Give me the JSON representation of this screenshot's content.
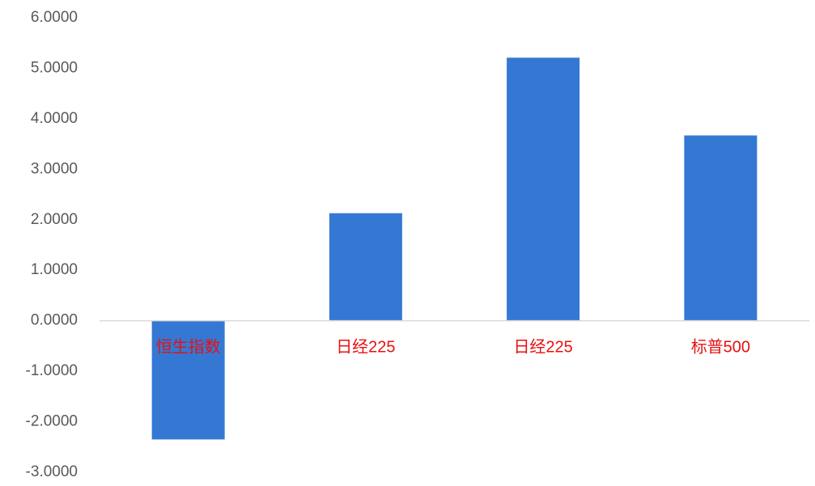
{
  "chart_data": {
    "type": "bar",
    "categories": [
      "恒生指数",
      "日经225",
      "日经225",
      "标普500"
    ],
    "values": [
      -2.35,
      2.13,
      5.21,
      3.67
    ],
    "ylim": [
      -3,
      6
    ],
    "yticks": [
      6,
      5,
      4,
      3,
      2,
      1,
      0,
      -1,
      -2,
      -3
    ],
    "ytick_labels": [
      "6.0000",
      "5.0000",
      "4.0000",
      "3.0000",
      "2.0000",
      "1.0000",
      "0.0000",
      "-1.0000",
      "-2.0000",
      "-3.0000"
    ],
    "title": "",
    "xlabel": "",
    "ylabel": "",
    "grid": false,
    "legend": "none",
    "bar_color": "#3478D4",
    "category_label_color": "#E8100F",
    "tick_label_color": "#595959",
    "axis_color": "#D9D9D9"
  }
}
